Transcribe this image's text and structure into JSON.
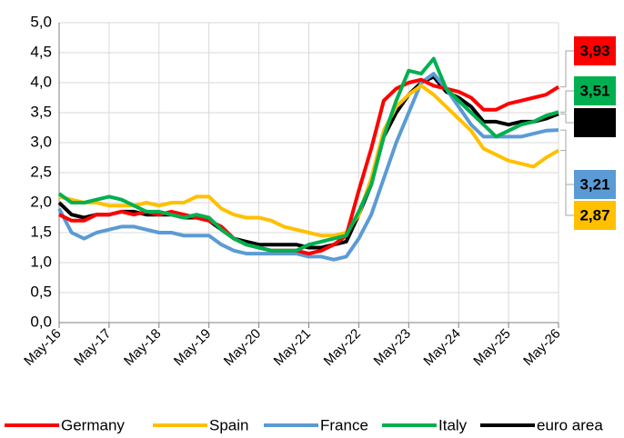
{
  "chart_data": {
    "type": "line",
    "categories": [
      "May-16",
      null,
      null,
      null,
      "May-17",
      null,
      null,
      null,
      "May-18",
      null,
      null,
      null,
      "May-19",
      null,
      null,
      null,
      "May-20",
      null,
      null,
      null,
      "May-21",
      null,
      null,
      null,
      "May-22",
      null,
      null,
      null,
      "May-23",
      null,
      null,
      null,
      "May-24",
      null,
      null,
      null,
      "May-25",
      null,
      null,
      null,
      "May-26"
    ],
    "ylim": [
      0,
      5
    ],
    "yticks": [
      {
        "value": 0,
        "label": "0,0"
      },
      {
        "value": 0.5,
        "label": "0,5"
      },
      {
        "value": 1,
        "label": "1,0"
      },
      {
        "value": 1.5,
        "label": "1,5"
      },
      {
        "value": 2,
        "label": "2,0"
      },
      {
        "value": 2.5,
        "label": "2,5"
      },
      {
        "value": 3,
        "label": "3,0"
      },
      {
        "value": 3.5,
        "label": "3,5"
      },
      {
        "value": 4,
        "label": "4,0"
      },
      {
        "value": 4.5,
        "label": "4,5"
      },
      {
        "value": 5,
        "label": "5,0"
      }
    ],
    "grid": true,
    "legend": "bottom",
    "series": [
      {
        "name": "Germany",
        "color": "#ff0000",
        "values": [
          1.8,
          1.7,
          1.7,
          1.8,
          1.8,
          1.85,
          1.8,
          1.85,
          1.8,
          1.85,
          1.8,
          1.75,
          1.7,
          1.6,
          1.4,
          1.3,
          1.25,
          1.2,
          1.2,
          1.2,
          1.15,
          1.2,
          1.3,
          1.45,
          2.2,
          2.9,
          3.7,
          3.9,
          4.0,
          4.05,
          3.95,
          3.9,
          3.85,
          3.75,
          3.55,
          3.55,
          3.65,
          3.7,
          3.75,
          3.8,
          3.93
        ],
        "value_labels": [
          null,
          null,
          null,
          null,
          null,
          null,
          null,
          null,
          null,
          null,
          null,
          null,
          null,
          null,
          null,
          null,
          null,
          null,
          null,
          null,
          null,
          null,
          null,
          null,
          null,
          null,
          null,
          null,
          null,
          null,
          null,
          null,
          null,
          null,
          null,
          null,
          null,
          null,
          null,
          null,
          "3,93"
        ]
      },
      {
        "name": "Spain",
        "color": "#ffc000",
        "values": [
          2.1,
          2.05,
          2.0,
          2.0,
          1.95,
          1.95,
          1.95,
          2.0,
          1.95,
          2.0,
          2.0,
          2.1,
          2.1,
          1.9,
          1.8,
          1.75,
          1.75,
          1.7,
          1.6,
          1.55,
          1.5,
          1.45,
          1.45,
          1.5,
          1.8,
          2.4,
          3.2,
          3.6,
          3.8,
          3.95,
          3.8,
          3.6,
          3.4,
          3.2,
          2.9,
          2.8,
          2.7,
          2.65,
          2.6,
          2.75,
          2.87
        ],
        "value_labels": [
          null,
          null,
          null,
          null,
          null,
          null,
          null,
          null,
          null,
          null,
          null,
          null,
          null,
          null,
          null,
          null,
          null,
          null,
          null,
          null,
          null,
          null,
          null,
          null,
          null,
          null,
          null,
          null,
          null,
          null,
          null,
          null,
          null,
          null,
          null,
          null,
          null,
          null,
          null,
          null,
          "2,87"
        ]
      },
      {
        "name": "France",
        "color": "#5b9bd5",
        "values": [
          1.9,
          1.5,
          1.4,
          1.5,
          1.55,
          1.6,
          1.6,
          1.55,
          1.5,
          1.5,
          1.45,
          1.45,
          1.45,
          1.3,
          1.2,
          1.15,
          1.15,
          1.15,
          1.15,
          1.15,
          1.1,
          1.1,
          1.05,
          1.1,
          1.4,
          1.8,
          2.4,
          3.0,
          3.5,
          4.0,
          4.15,
          3.9,
          3.6,
          3.3,
          3.1,
          3.1,
          3.1,
          3.1,
          3.15,
          3.2,
          3.21
        ],
        "value_labels": [
          null,
          null,
          null,
          null,
          null,
          null,
          null,
          null,
          null,
          null,
          null,
          null,
          null,
          null,
          null,
          null,
          null,
          null,
          null,
          null,
          null,
          null,
          null,
          null,
          null,
          null,
          null,
          null,
          null,
          null,
          null,
          null,
          null,
          null,
          null,
          null,
          null,
          null,
          null,
          null,
          "3,21"
        ]
      },
      {
        "name": "Italy",
        "color": "#00b050",
        "values": [
          2.15,
          2.0,
          2.0,
          2.05,
          2.1,
          2.05,
          1.95,
          1.85,
          1.85,
          1.8,
          1.75,
          1.8,
          1.75,
          1.55,
          1.4,
          1.3,
          1.25,
          1.2,
          1.2,
          1.2,
          1.3,
          1.35,
          1.4,
          1.45,
          1.85,
          2.3,
          3.1,
          3.7,
          4.2,
          4.15,
          4.4,
          3.9,
          3.7,
          3.5,
          3.3,
          3.1,
          3.2,
          3.3,
          3.35,
          3.45,
          3.51
        ],
        "value_labels": [
          null,
          null,
          null,
          null,
          null,
          null,
          null,
          null,
          null,
          null,
          null,
          null,
          null,
          null,
          null,
          null,
          null,
          null,
          null,
          null,
          null,
          null,
          null,
          null,
          null,
          null,
          null,
          null,
          null,
          null,
          null,
          null,
          null,
          null,
          null,
          null,
          null,
          null,
          null,
          null,
          "3,51"
        ]
      },
      {
        "name": "euro area",
        "color": "#000000",
        "values": [
          2.0,
          1.8,
          1.75,
          1.8,
          1.8,
          1.85,
          1.85,
          1.8,
          1.8,
          1.8,
          1.75,
          1.75,
          1.7,
          1.55,
          1.4,
          1.35,
          1.3,
          1.3,
          1.3,
          1.3,
          1.25,
          1.25,
          1.3,
          1.35,
          1.8,
          2.3,
          3.1,
          3.5,
          3.8,
          4.0,
          4.1,
          3.85,
          3.75,
          3.6,
          3.35,
          3.35,
          3.3,
          3.35,
          3.35,
          3.4,
          3.48
        ],
        "value_labels": [
          null,
          null,
          null,
          null,
          null,
          null,
          null,
          null,
          null,
          null,
          null,
          null,
          null,
          null,
          null,
          null,
          null,
          null,
          null,
          null,
          null,
          null,
          null,
          null,
          null,
          null,
          null,
          null,
          null,
          null,
          null,
          null,
          null,
          null,
          null,
          null,
          null,
          null,
          null,
          null,
          "3,48"
        ]
      }
    ]
  }
}
